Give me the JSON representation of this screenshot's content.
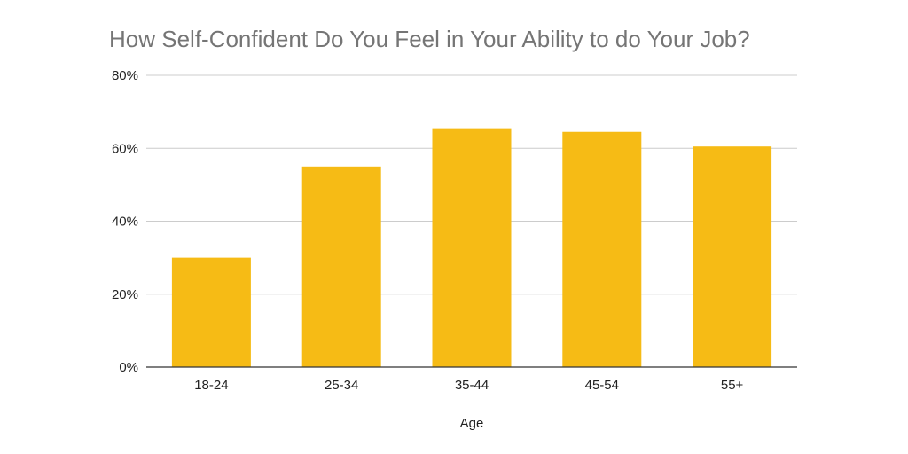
{
  "chart_data": {
    "type": "bar",
    "title": "How Self-Confident Do You Feel in Your Ability to do Your Job?",
    "xlabel": "Age",
    "ylabel": "",
    "categories": [
      "18-24",
      "25-34",
      "35-44",
      "45-54",
      "55+"
    ],
    "values": [
      30,
      55,
      65.5,
      64.5,
      60.5
    ],
    "ylim": [
      0,
      80
    ],
    "yticks": [
      0,
      20,
      40,
      60,
      80
    ],
    "ytick_labels": [
      "0%",
      "20%",
      "40%",
      "60%",
      "80%"
    ],
    "bar_color": "#f6bb15",
    "grid": true,
    "legend": "none"
  }
}
